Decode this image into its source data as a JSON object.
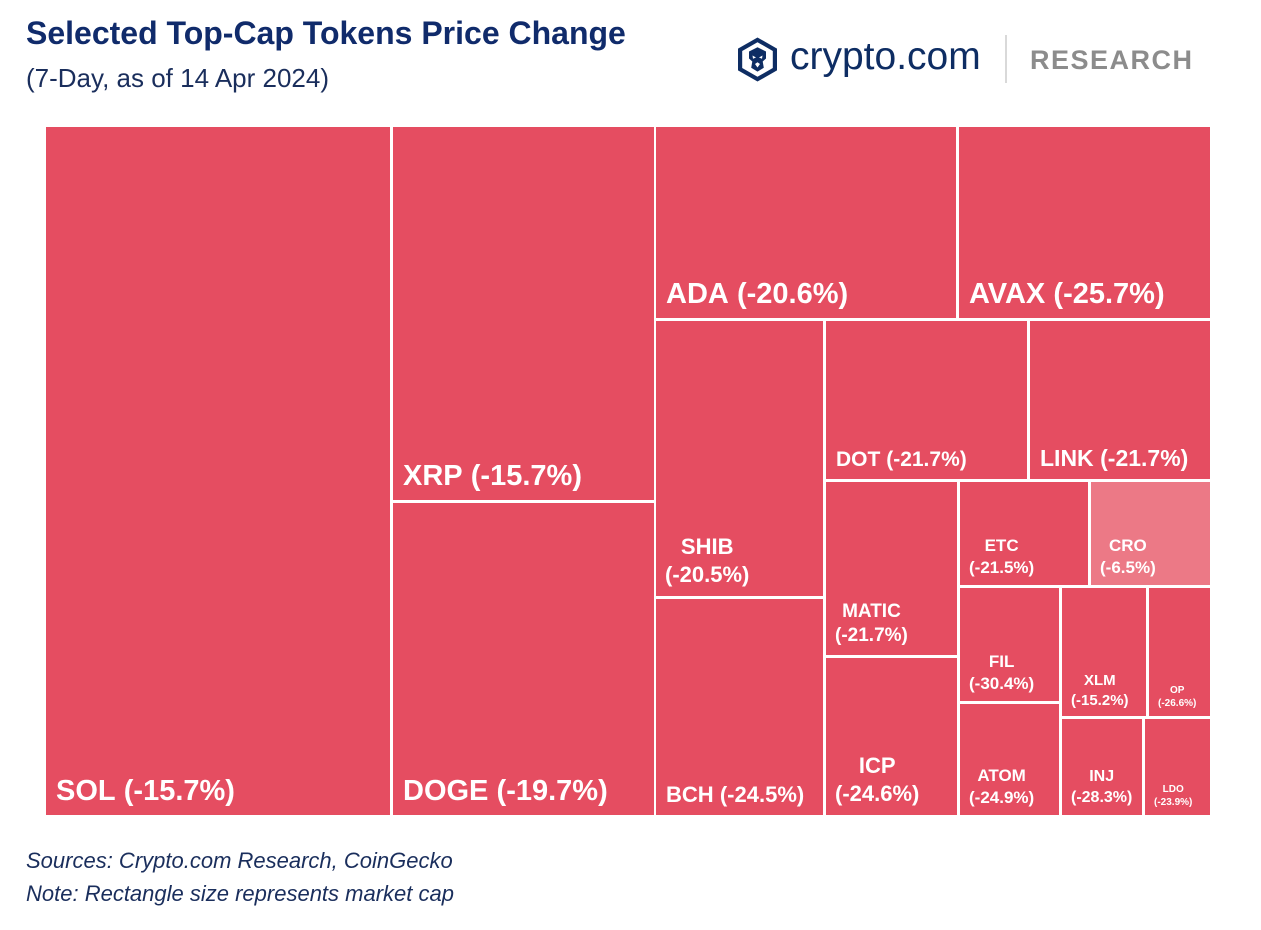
{
  "colors": {
    "title": "#102B6B",
    "text_navy": "#1A2E5C",
    "brand_navy": "#0E2D63",
    "brand_grey": "#8C8C8C",
    "tile_decline": "#E54D61",
    "tile_mild_decline": "#EC7986",
    "tile_label": "#FFFFFF"
  },
  "brand": {
    "icon": "crypto-com-lion-logo-icon",
    "name": "crypto.com",
    "division": "RESEARCH"
  },
  "chart_data": {
    "type": "heatmap",
    "title": "Selected Top-Cap Tokens Price Change",
    "subtitle": "(7-Day, as of 14 Apr 2024)",
    "items": [
      {
        "symbol": "SOL",
        "change": -15.7,
        "color": "#E54D61"
      },
      {
        "symbol": "XRP",
        "change": -15.7,
        "color": "#E54D61"
      },
      {
        "symbol": "DOGE",
        "change": -19.7,
        "color": "#E54D61"
      },
      {
        "symbol": "ADA",
        "change": -20.6,
        "color": "#E54D61"
      },
      {
        "symbol": "AVAX",
        "change": -25.7,
        "color": "#E54D61"
      },
      {
        "symbol": "SHIB",
        "change": -20.5,
        "color": "#E54D61"
      },
      {
        "symbol": "BCH",
        "change": -24.5,
        "color": "#E54D61"
      },
      {
        "symbol": "DOT",
        "change": -21.7,
        "color": "#E54D61"
      },
      {
        "symbol": "LINK",
        "change": -21.7,
        "color": "#E54D61"
      },
      {
        "symbol": "MATIC",
        "change": -21.7,
        "color": "#E54D61"
      },
      {
        "symbol": "ICP",
        "change": -24.6,
        "color": "#E54D61"
      },
      {
        "symbol": "ETC",
        "change": -21.5,
        "color": "#E54D61"
      },
      {
        "symbol": "CRO",
        "change": -6.5,
        "color": "#EC7986"
      },
      {
        "symbol": "FIL",
        "change": -30.4,
        "color": "#E54D61"
      },
      {
        "symbol": "XLM",
        "change": -15.2,
        "color": "#E54D61"
      },
      {
        "symbol": "OP",
        "change": -26.6,
        "color": "#E54D61"
      },
      {
        "symbol": "ATOM",
        "change": -24.9,
        "color": "#E54D61"
      },
      {
        "symbol": "INJ",
        "change": -28.3,
        "color": "#E54D61"
      },
      {
        "symbol": "LDO",
        "change": -23.9,
        "color": "#E54D61"
      }
    ]
  },
  "footer": {
    "sources": "Sources: Crypto.com Research, CoinGecko",
    "note": "Note: Rectangle size represents market cap"
  }
}
